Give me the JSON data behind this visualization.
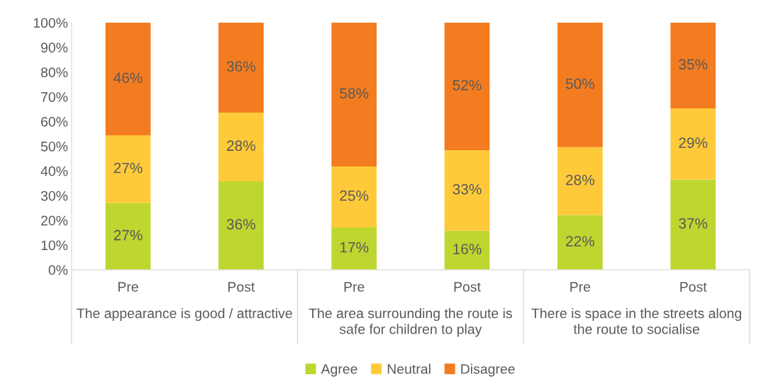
{
  "chart_data": {
    "type": "bar",
    "stacked": true,
    "categories": [
      "Pre",
      "Post",
      "Pre",
      "Post",
      "Pre",
      "Post"
    ],
    "annotations": [
      "The appearance is good / attractive",
      "The area surrounding the route is safe for children to play",
      "There is space in the streets along the route to socialise"
    ],
    "series": [
      {
        "name": "Agree",
        "color": "#bed62f",
        "values": [
          27.0,
          35.8,
          17.2,
          15.8,
          22.1,
          36.5
        ],
        "value_labels": [
          "27%",
          "36%",
          "17%",
          "16%",
          "22%",
          "37%"
        ]
      },
      {
        "name": "Neutral",
        "color": "#ffca3a",
        "values": [
          27.4,
          27.8,
          24.6,
          32.6,
          27.5,
          28.8
        ],
        "value_labels": [
          "27%",
          "28%",
          "25%",
          "33%",
          "28%",
          "29%"
        ]
      },
      {
        "name": "Disagree",
        "color": "#f47c20",
        "values": [
          45.6,
          36.4,
          58.2,
          51.6,
          50.4,
          34.7
        ],
        "value_labels": [
          "46%",
          "36%",
          "58%",
          "52%",
          "50%",
          "35%"
        ]
      }
    ],
    "ylim": [
      0,
      100
    ],
    "yticks": [
      {
        "value": 0,
        "label": "0%"
      },
      {
        "value": 10,
        "label": "10%"
      },
      {
        "value": 20,
        "label": "20%"
      },
      {
        "value": 30,
        "label": "30%"
      },
      {
        "value": 40,
        "label": "40%"
      },
      {
        "value": 50,
        "label": "50%"
      },
      {
        "value": 60,
        "label": "60%"
      },
      {
        "value": 70,
        "label": "70%"
      },
      {
        "value": 80,
        "label": "80%"
      },
      {
        "value": 90,
        "label": "90%"
      },
      {
        "value": 100,
        "label": "100%"
      }
    ],
    "grid": false,
    "legend": "bottom"
  }
}
